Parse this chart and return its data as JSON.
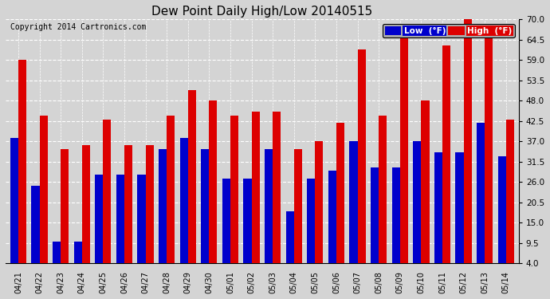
{
  "title": "Dew Point Daily High/Low 20140515",
  "copyright": "Copyright 2014 Cartronics.com",
  "dates": [
    "04/21",
    "04/22",
    "04/23",
    "04/24",
    "04/25",
    "04/26",
    "04/27",
    "04/28",
    "04/29",
    "04/30",
    "05/01",
    "05/02",
    "05/03",
    "05/04",
    "05/05",
    "05/06",
    "05/07",
    "05/08",
    "05/09",
    "05/10",
    "05/11",
    "05/12",
    "05/13",
    "05/14"
  ],
  "low": [
    38,
    25,
    10,
    10,
    28,
    28,
    28,
    35,
    38,
    35,
    27,
    27,
    35,
    18,
    27,
    29,
    37,
    30,
    30,
    37,
    34,
    34,
    42,
    33
  ],
  "high": [
    59,
    44,
    35,
    36,
    43,
    36,
    36,
    44,
    51,
    48,
    44,
    45,
    45,
    35,
    37,
    42,
    62,
    44,
    66,
    48,
    63,
    70,
    65,
    43
  ],
  "low_color": "#0000cc",
  "high_color": "#dd0000",
  "bg_color": "#d4d4d4",
  "plot_bg_color": "#d4d4d4",
  "grid_color": "#ffffff",
  "ylim": [
    4.0,
    70.0
  ],
  "yticks": [
    4.0,
    9.5,
    15.0,
    20.5,
    26.0,
    31.5,
    37.0,
    42.5,
    48.0,
    53.5,
    59.0,
    64.5,
    70.0
  ],
  "title_fontsize": 11,
  "copyright_fontsize": 7,
  "legend_low_label": "Low  (°F)",
  "legend_high_label": "High  (°F)",
  "bar_bottom": 4.0
}
